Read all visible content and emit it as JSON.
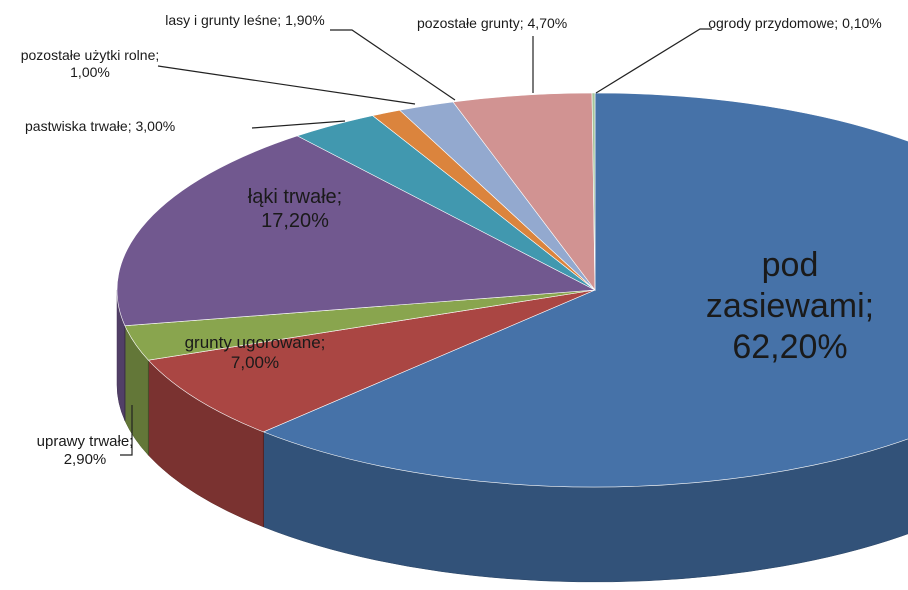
{
  "chart_data": {
    "type": "pie",
    "categories": [
      "pod zasiewami;",
      "grunty ugorowane;",
      "uprawy trwałe;",
      "łąki trwałe;",
      "pastwiska trwałe;",
      "pozostałe użytki rolne;",
      "lasy i grunty leśne;",
      "pozostałe grunty;",
      "ogrody przydomowe;"
    ],
    "values": [
      62.2,
      7.0,
      2.9,
      17.2,
      3.0,
      1.0,
      1.9,
      4.7,
      0.1
    ],
    "value_labels": [
      "62,20%",
      "7,00%",
      "2,90%",
      "17,20%",
      "3,00%",
      "1,00%",
      "1,90%",
      "4,70%",
      "0,10%"
    ],
    "colors": [
      "#4672a8",
      "#aa4643",
      "#89a54e",
      "#71588f",
      "#4198af",
      "#db843d",
      "#93a9cf",
      "#d19392",
      "#a5c49b"
    ]
  }
}
